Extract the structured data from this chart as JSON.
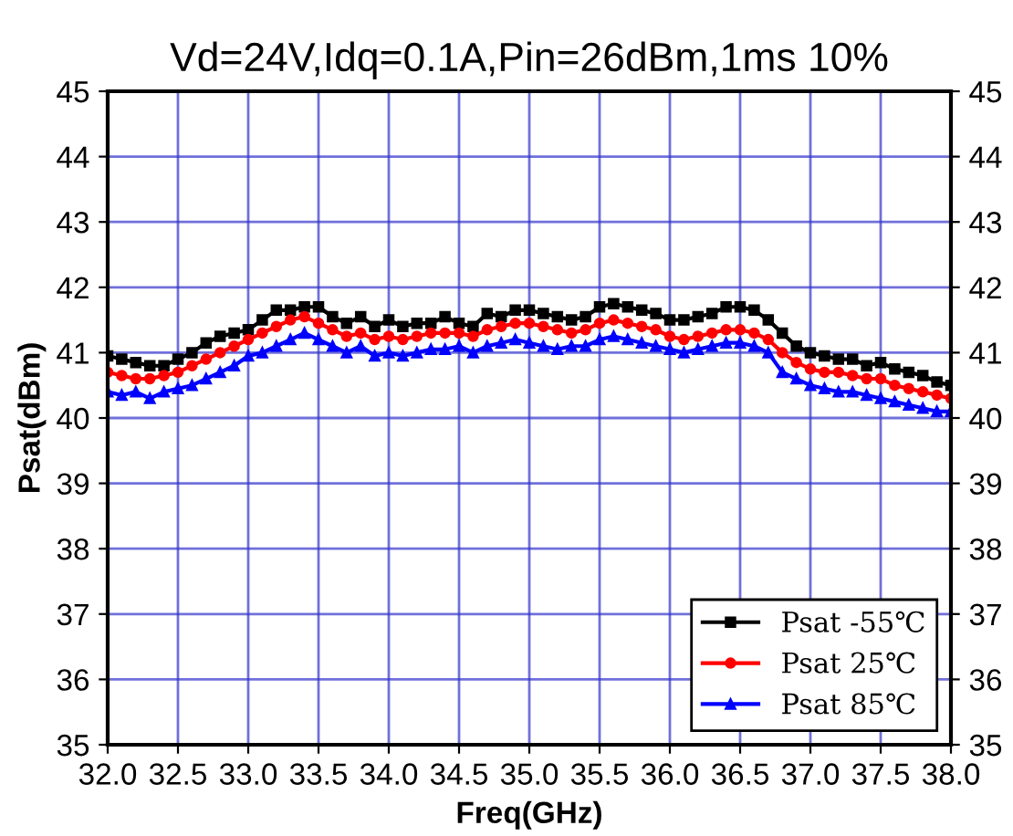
{
  "chart_data": {
    "type": "line",
    "title": "Vd=24V,Idq=0.1A,Pin=26dBm,1ms 10%",
    "xlabel": "Freq(GHz)",
    "ylabel": "Psat(dBm)",
    "x": [
      32.0,
      32.1,
      32.2,
      32.3,
      32.4,
      32.5,
      32.6,
      32.7,
      32.8,
      32.9,
      33.0,
      33.1,
      33.2,
      33.3,
      33.4,
      33.5,
      33.6,
      33.7,
      33.8,
      33.9,
      34.0,
      34.1,
      34.2,
      34.3,
      34.4,
      34.5,
      34.6,
      34.7,
      34.8,
      34.9,
      35.0,
      35.1,
      35.2,
      35.3,
      35.4,
      35.5,
      35.6,
      35.7,
      35.8,
      35.9,
      36.0,
      36.1,
      36.2,
      36.3,
      36.4,
      36.5,
      36.6,
      36.7,
      36.8,
      36.9,
      37.0,
      37.1,
      37.2,
      37.3,
      37.4,
      37.5,
      37.6,
      37.7,
      37.8,
      37.9,
      38.0
    ],
    "series": [
      {
        "name": "Psat -55℃",
        "color": "#000000",
        "marker": "square",
        "values": [
          40.95,
          40.9,
          40.85,
          40.8,
          40.8,
          40.9,
          41.0,
          41.15,
          41.25,
          41.3,
          41.35,
          41.5,
          41.65,
          41.65,
          41.7,
          41.7,
          41.55,
          41.45,
          41.55,
          41.4,
          41.5,
          41.4,
          41.45,
          41.45,
          41.55,
          41.45,
          41.4,
          41.6,
          41.55,
          41.65,
          41.65,
          41.6,
          41.55,
          41.5,
          41.55,
          41.7,
          41.75,
          41.7,
          41.65,
          41.6,
          41.5,
          41.5,
          41.55,
          41.6,
          41.7,
          41.7,
          41.65,
          41.5,
          41.3,
          41.1,
          41.0,
          40.95,
          40.9,
          40.9,
          40.8,
          40.85,
          40.75,
          40.7,
          40.65,
          40.55,
          40.5
        ]
      },
      {
        "name": "Psat 25℃",
        "color": "#ff0000",
        "marker": "circle",
        "values": [
          40.7,
          40.65,
          40.6,
          40.6,
          40.65,
          40.7,
          40.8,
          40.9,
          41.0,
          41.1,
          41.2,
          41.3,
          41.4,
          41.5,
          41.55,
          41.45,
          41.35,
          41.25,
          41.3,
          41.2,
          41.25,
          41.2,
          41.25,
          41.3,
          41.3,
          41.3,
          41.25,
          41.35,
          41.4,
          41.45,
          41.45,
          41.4,
          41.35,
          41.3,
          41.35,
          41.45,
          41.5,
          41.45,
          41.4,
          41.35,
          41.25,
          41.2,
          41.25,
          41.3,
          41.35,
          41.35,
          41.3,
          41.2,
          41.0,
          40.85,
          40.75,
          40.7,
          40.7,
          40.65,
          40.6,
          40.6,
          40.5,
          40.45,
          40.4,
          40.35,
          40.3
        ]
      },
      {
        "name": "Psat 85℃",
        "color": "#0000ff",
        "marker": "triangle",
        "values": [
          40.4,
          40.35,
          40.4,
          40.3,
          40.4,
          40.45,
          40.5,
          40.6,
          40.7,
          40.8,
          40.95,
          41.0,
          41.1,
          41.2,
          41.3,
          41.2,
          41.1,
          41.0,
          41.1,
          40.95,
          41.0,
          40.95,
          41.0,
          41.05,
          41.05,
          41.1,
          41.0,
          41.1,
          41.15,
          41.2,
          41.15,
          41.1,
          41.05,
          41.1,
          41.1,
          41.2,
          41.25,
          41.2,
          41.15,
          41.1,
          41.05,
          41.0,
          41.05,
          41.1,
          41.15,
          41.15,
          41.1,
          41.0,
          40.7,
          40.6,
          40.5,
          40.45,
          40.4,
          40.4,
          40.35,
          40.3,
          40.25,
          40.2,
          40.15,
          40.1,
          40.1
        ]
      }
    ],
    "xlim": [
      32,
      38
    ],
    "xticks": [
      {
        "value": 32,
        "label": "32.0"
      },
      {
        "value": 32.5,
        "label": "32.5"
      },
      {
        "value": 33,
        "label": "33.0"
      },
      {
        "value": 33.5,
        "label": "33.5"
      },
      {
        "value": 34,
        "label": "34.0"
      },
      {
        "value": 34.5,
        "label": "34.5"
      },
      {
        "value": 35,
        "label": "35.0"
      },
      {
        "value": 35.5,
        "label": "35.5"
      },
      {
        "value": 36,
        "label": "36.0"
      },
      {
        "value": 36.5,
        "label": "36.5"
      },
      {
        "value": 37,
        "label": "37.0"
      },
      {
        "value": 37.5,
        "label": "37.5"
      },
      {
        "value": 38,
        "label": "38.0"
      }
    ],
    "ylim": [
      35,
      45
    ],
    "yticks": [
      35,
      36,
      37,
      38,
      39,
      40,
      41,
      42,
      43,
      44,
      45
    ],
    "y2lim": [
      35,
      45
    ],
    "y2ticks": [
      35,
      36,
      37,
      38,
      39,
      40,
      41,
      42,
      43,
      44,
      45
    ],
    "grid": true,
    "legend": "bottom right",
    "line_style": "solid"
  }
}
